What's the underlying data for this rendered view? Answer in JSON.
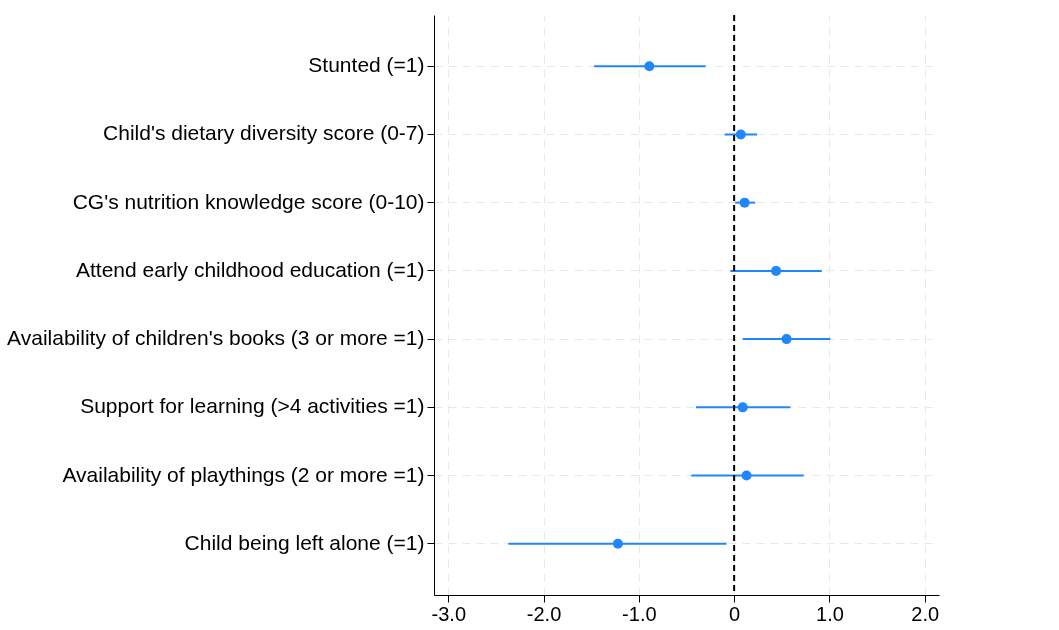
{
  "chart_data": {
    "type": "scatter",
    "orientation": "horizontal",
    "categories": [
      "Stunted (=1)",
      "Child's dietary diversity score (0-7)",
      "CG's nutrition knowledge score (0-10)",
      "Attend early childhood education (=1)",
      "Availability of children's books (3 or more =1)",
      "Support for learning (>4 activities =1)",
      "Availability of playthings (2 or more =1)",
      "Child being left alone (=1)"
    ],
    "color": "#1f87fa",
    "values": [
      -0.89,
      0.07,
      0.11,
      0.44,
      0.55,
      0.09,
      0.13,
      -1.22
    ],
    "errors": [
      [
        -1.47,
        -0.3
      ],
      [
        -0.1,
        0.24
      ],
      [
        0.01,
        0.22
      ],
      [
        -0.04,
        0.92
      ],
      [
        0.09,
        1.01
      ],
      [
        -0.4,
        0.59
      ],
      [
        -0.45,
        0.73
      ],
      [
        -2.37,
        -0.08
      ]
    ],
    "xlim": [
      -3.15,
      2.15
    ],
    "xticks": [
      {
        "value": -3,
        "label": "-3.0"
      },
      {
        "value": -2,
        "label": "-2.0"
      },
      {
        "value": -1,
        "label": "-1.0"
      },
      0,
      {
        "value": 1,
        "label": "1.0"
      },
      {
        "value": 2,
        "label": "2.0"
      }
    ],
    "ref_lines": [
      {
        "axis": "x",
        "value": 0,
        "color": "#000000",
        "line_style": "dashed"
      }
    ],
    "grid": true,
    "marker": "circle"
  }
}
